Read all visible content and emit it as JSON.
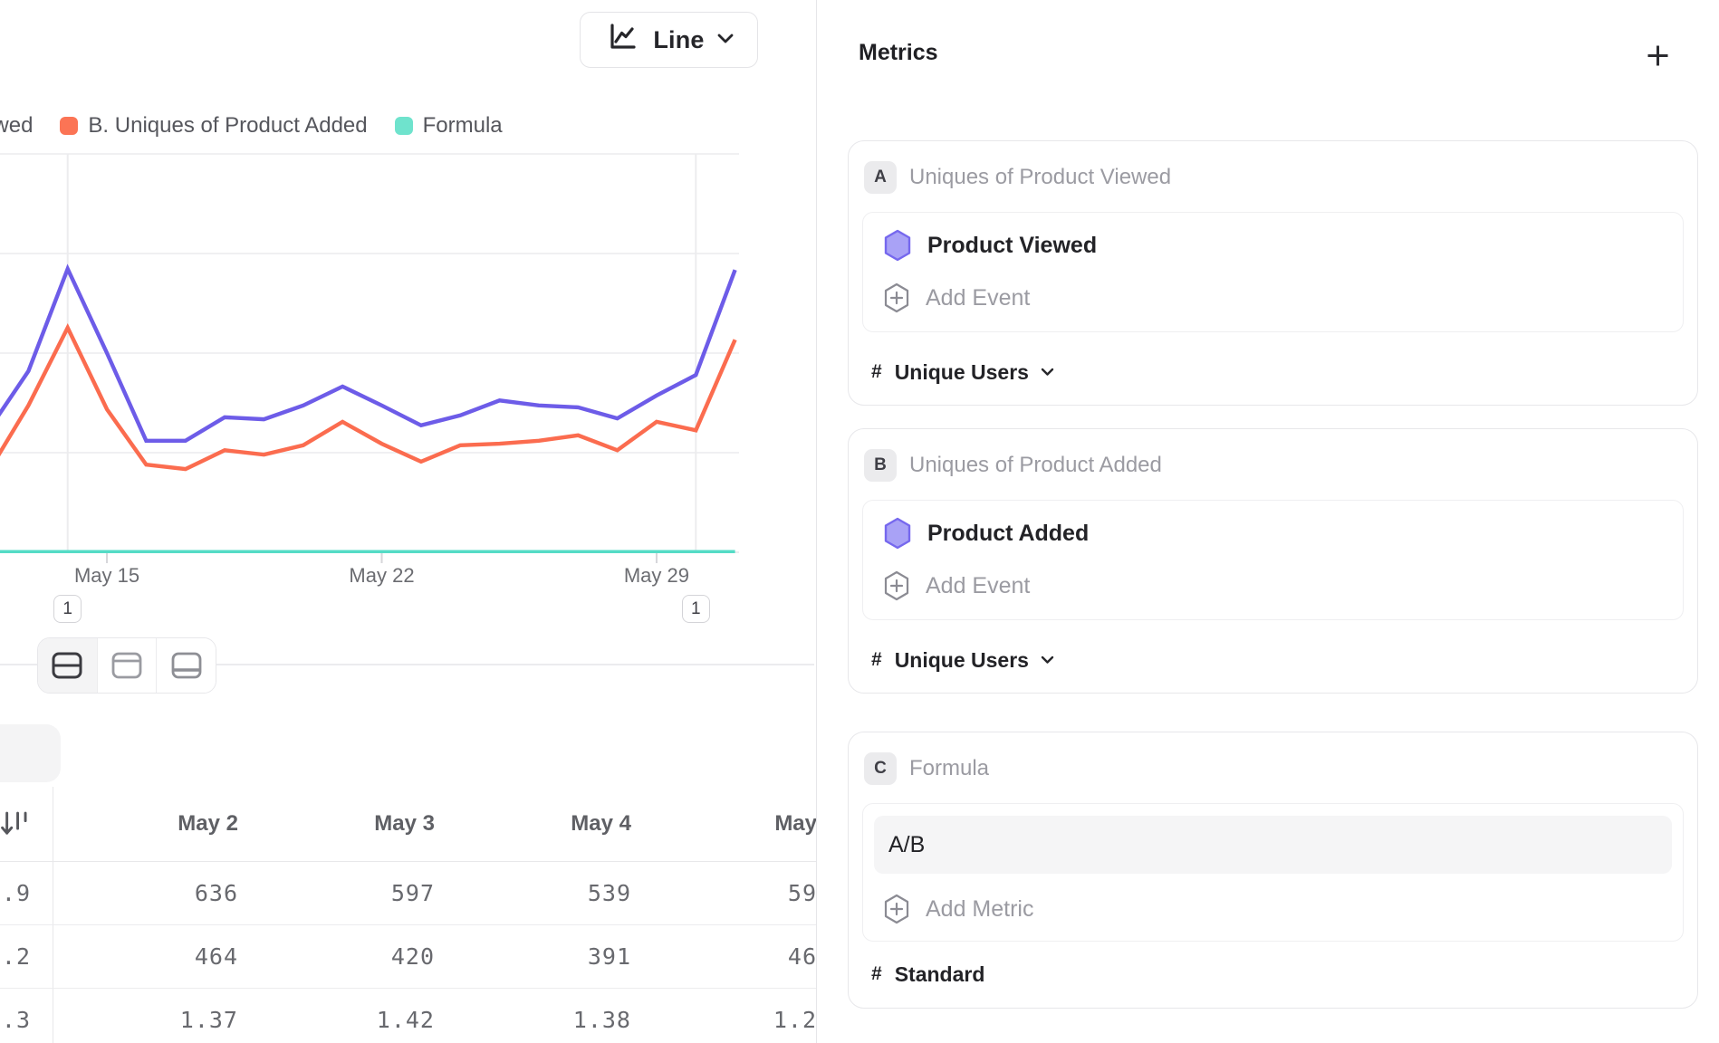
{
  "toolbar": {
    "chart_type_label": "Line"
  },
  "legend": {
    "items": [
      {
        "label": "A. Uniques of Product Viewed",
        "color": "#6d5ce8"
      },
      {
        "label": "B. Uniques of Product Added",
        "color": "#fb7455"
      },
      {
        "label": "Formula",
        "color": "#6fe3cd"
      }
    ]
  },
  "chart_data": {
    "type": "line",
    "x": [
      "May 12",
      "May 13",
      "May 14",
      "May 15",
      "May 16",
      "May 17",
      "May 18",
      "May 19",
      "May 20",
      "May 21",
      "May 22",
      "May 23",
      "May 24",
      "May 25",
      "May 26",
      "May 27",
      "May 28",
      "May 29",
      "May 30",
      "May 31"
    ],
    "x_axis_ticks": [
      "May 15",
      "May 22",
      "May 29"
    ],
    "series": [
      {
        "name": "A. Uniques of Product Viewed",
        "color": "#6d5ce8",
        "values": [
          247,
          364,
          569,
          400,
          224,
          224,
          271,
          267,
          295,
          333,
          295,
          255,
          275,
          305,
          295,
          291,
          269,
          315,
          356,
          567
        ]
      },
      {
        "name": "B. Uniques of Product Added",
        "color": "#fb6c4f",
        "values": [
          164,
          295,
          451,
          287,
          176,
          167,
          205,
          196,
          215,
          262,
          218,
          182,
          215,
          218,
          224,
          235,
          205,
          262,
          245,
          427
        ]
      },
      {
        "name": "Formula",
        "color": "#55dcc6",
        "values": [
          1.4,
          1.4,
          1.4,
          1.4,
          1.4,
          1.4,
          1.4,
          1.4,
          1.4,
          1.4,
          1.4,
          1.4,
          1.4,
          1.4,
          1.4,
          1.4,
          1.4,
          1.4,
          1.4,
          1.4
        ]
      }
    ],
    "ylim": [
      0,
      800
    ],
    "grid": "horizontal",
    "legend_position": "top-left",
    "annotations": [
      {
        "label": "1",
        "x": "May 14"
      },
      {
        "label": "1",
        "x": "May 30"
      }
    ]
  },
  "view_switcher": {
    "selected": 0,
    "options": [
      "split-horizontal-view",
      "panel-top-view",
      "panel-bottom-view"
    ]
  },
  "table": {
    "columns": [
      "May 2",
      "May 3",
      "May 4",
      "May"
    ],
    "rows": [
      {
        "cells": [
          ".9",
          "636",
          "597",
          "539",
          "59"
        ]
      },
      {
        "cells": [
          ".2",
          "464",
          "420",
          "391",
          "46"
        ]
      },
      {
        "cells": [
          ".3",
          "1.37",
          "1.42",
          "1.38",
          "1.2"
        ]
      }
    ]
  },
  "metrics_panel": {
    "title": "Metrics",
    "cards": [
      {
        "badge": "A",
        "title": "Uniques of Product Viewed",
        "event": "Product Viewed",
        "add_label": "Add Event",
        "measure_prefix": "#",
        "measure": "Unique Users"
      },
      {
        "badge": "B",
        "title": "Uniques of Product Added",
        "event": "Product Added",
        "add_label": "Add Event",
        "measure_prefix": "#",
        "measure": "Unique Users"
      },
      {
        "badge": "C",
        "title": "Formula",
        "formula_value": "A/B",
        "add_label": "Add Metric",
        "measure_prefix": "#",
        "measure": "Standard"
      }
    ]
  }
}
